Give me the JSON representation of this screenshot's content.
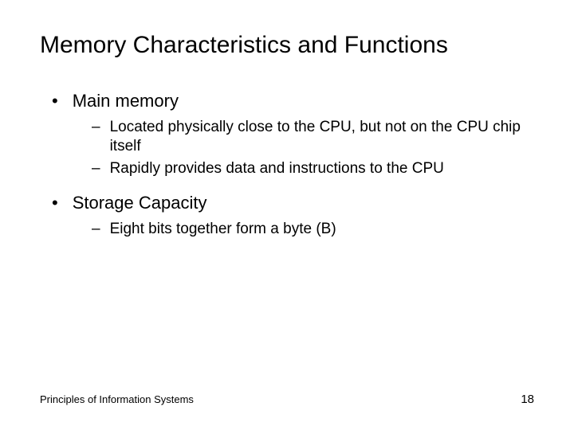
{
  "slide": {
    "title": "Memory Characteristics and Functions",
    "bullets": [
      {
        "text": "Main memory",
        "subs": [
          "Located physically close to the CPU, but not on the CPU chip itself",
          "Rapidly provides data and instructions to the CPU"
        ]
      },
      {
        "text": "Storage Capacity",
        "subs": [
          "Eight bits together form a byte (B)"
        ]
      }
    ]
  },
  "footer": {
    "source": "Principles of Information Systems",
    "page": "18"
  },
  "markers": {
    "bullet": "•",
    "dash": "–"
  },
  "style": {
    "background_color": "#ffffff",
    "text_color": "#000000",
    "title_fontsize": 30,
    "bullet_fontsize": 22,
    "sub_fontsize": 19,
    "footer_fontsize": 13
  }
}
